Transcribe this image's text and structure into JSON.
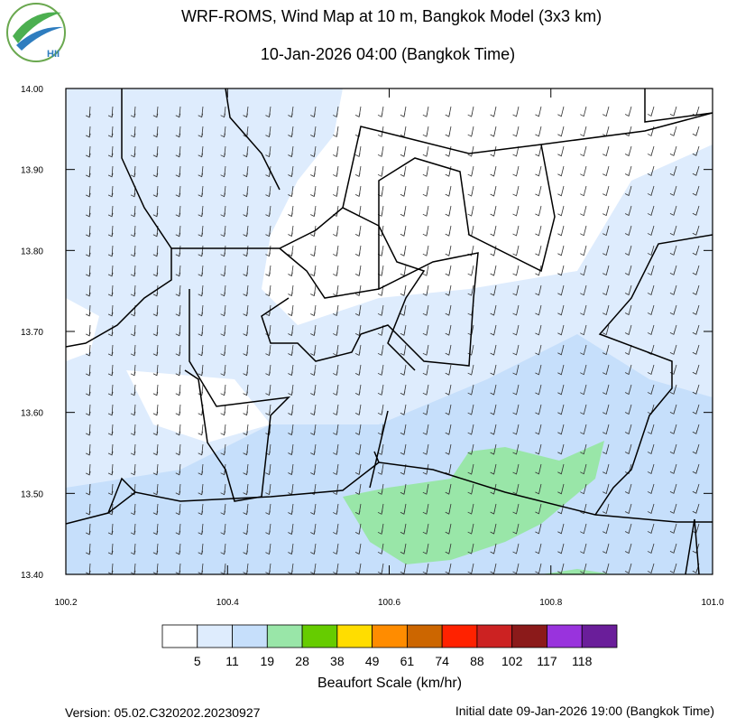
{
  "header": {
    "title": "WRF-ROMS, Wind Map at 10 m, Bangkok Model (3x3 km)",
    "subtitle": "10-Jan-2026 04:00 (Bangkok Time)",
    "logo": "HII"
  },
  "map": {
    "xlim": [
      100.2,
      101.0
    ],
    "ylim": [
      13.4,
      14.0
    ],
    "xticks": [
      {
        "value": 100.2,
        "label": "100.2"
      },
      {
        "value": 100.4,
        "label": "100.4"
      },
      {
        "value": 100.6,
        "label": "100.6"
      },
      {
        "value": 100.8,
        "label": "100.8"
      },
      {
        "value": 101.0,
        "label": "101.0"
      }
    ],
    "yticks": [
      {
        "value": 14.0,
        "label": "14.00"
      },
      {
        "value": 13.9,
        "label": "13.90"
      },
      {
        "value": 13.8,
        "label": "13.80"
      },
      {
        "value": 13.7,
        "label": "13.70"
      },
      {
        "value": 13.6,
        "label": "13.60"
      },
      {
        "value": 13.5,
        "label": "13.50"
      },
      {
        "value": 13.4,
        "label": "13.40"
      }
    ]
  },
  "colorbar": {
    "title": "Beaufort Scale (km/hr)",
    "labels": [
      5,
      11,
      19,
      28,
      38,
      49,
      61,
      74,
      88,
      102,
      117,
      118
    ],
    "colors": [
      "#ffffff",
      "#deecfd",
      "#c6dffb",
      "#99e6a8",
      "#66cc00",
      "#ffdd00",
      "#ff8c00",
      "#cc6600",
      "#ff2200",
      "#cc2222",
      "#8b1a1a",
      "#9933dd",
      "#6a1e9a"
    ]
  },
  "footer": {
    "version": "Version: 05.02.C320202.20230927",
    "initial_date": "Initial date 09-Jan-2026 19:00 (Bangkok Time)"
  }
}
